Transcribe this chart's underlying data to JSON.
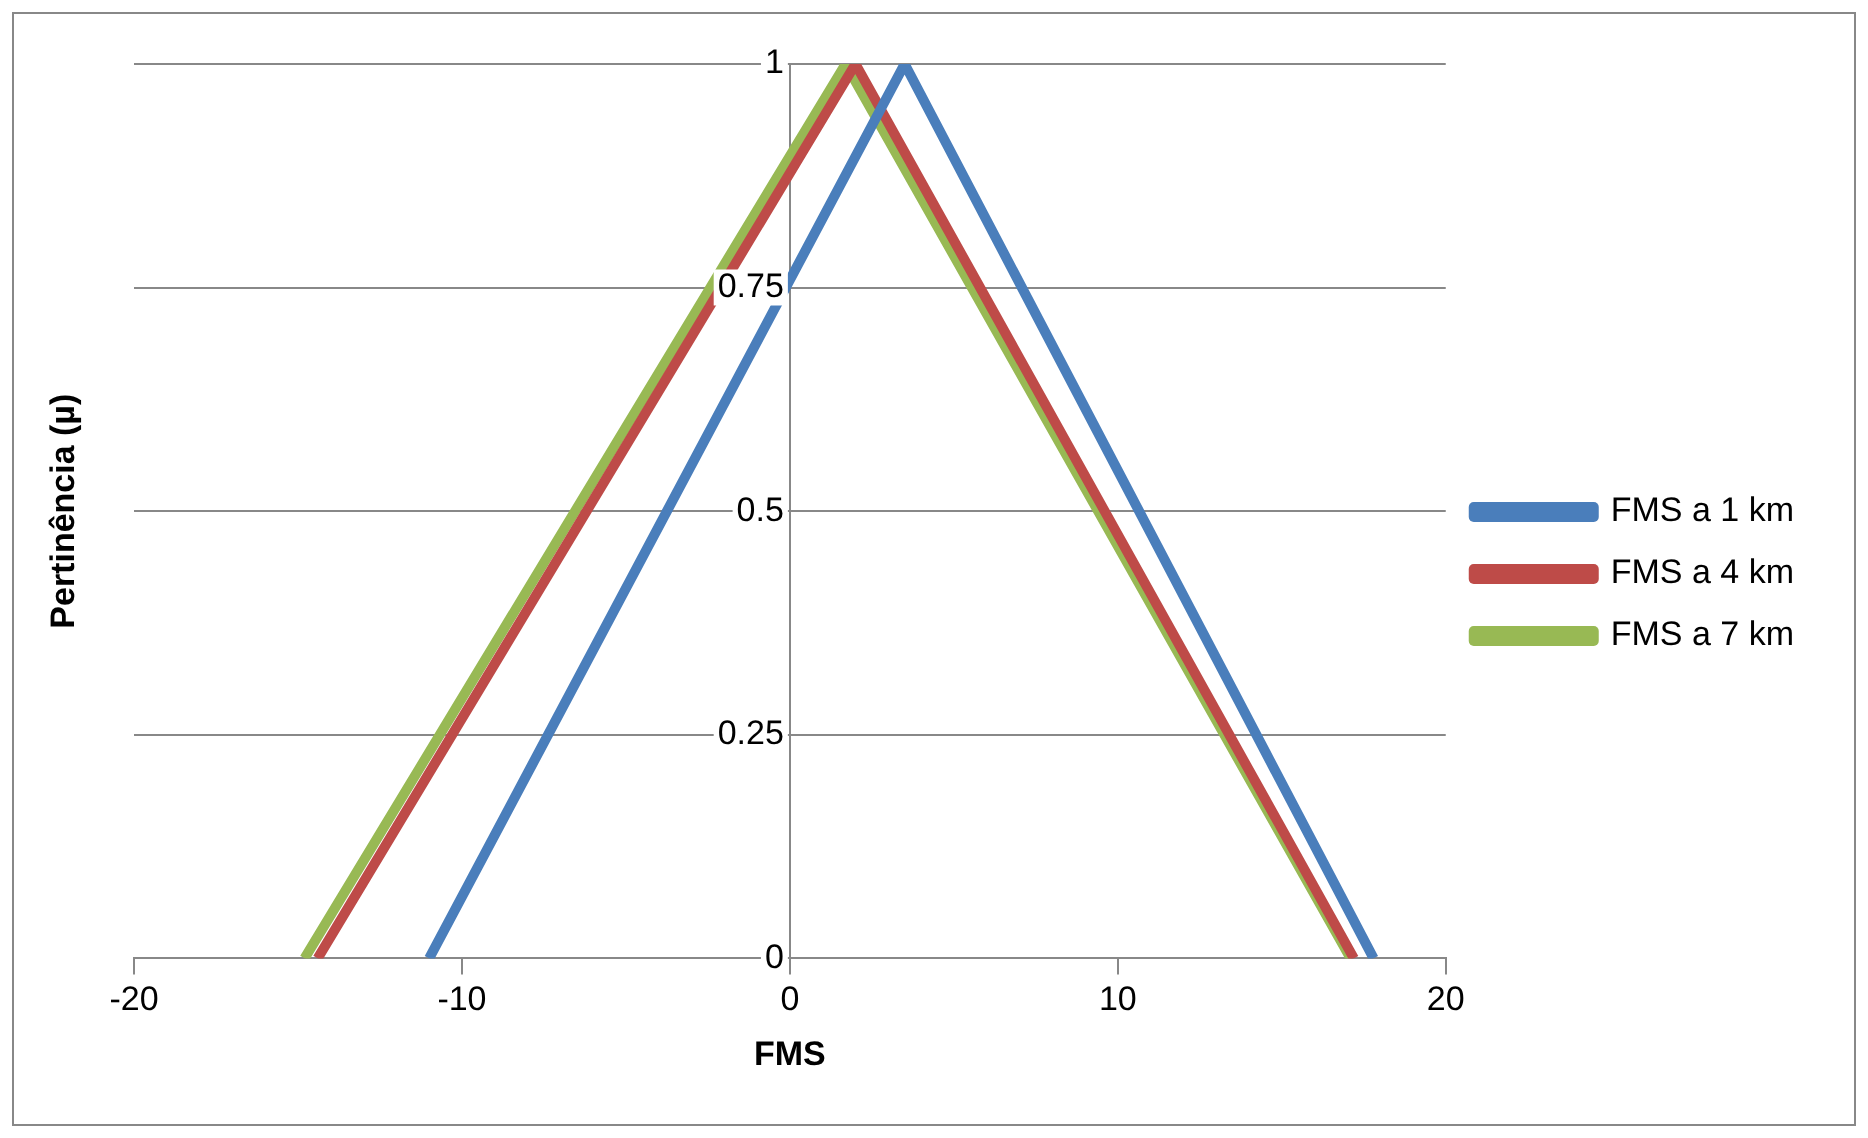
{
  "chart_data": {
    "type": "line",
    "xlabel": "FMS",
    "ylabel": "Pertinência (µ)",
    "xlim": [
      -20,
      20
    ],
    "xticks": [
      -20,
      -10,
      0,
      10,
      20
    ],
    "ylim": [
      0,
      1
    ],
    "yticks": [
      0,
      0.25,
      0.5,
      0.75,
      1
    ],
    "grid": "y",
    "legend": "right",
    "marker": "none",
    "series": [
      {
        "name": "FMS a 1 km",
        "color": "#4a7ebb",
        "x": [
          -11,
          3.5,
          17.8
        ],
        "values": [
          0,
          1,
          0
        ]
      },
      {
        "name": "FMS a 4 km",
        "color": "#be4b48",
        "x": [
          -14.4,
          2,
          17.2
        ],
        "values": [
          0,
          1,
          0
        ]
      },
      {
        "name": "FMS a 7 km",
        "color": "#98b954",
        "x": [
          -14.8,
          1.7,
          17.1
        ],
        "values": [
          0,
          1,
          0
        ]
      }
    ]
  }
}
